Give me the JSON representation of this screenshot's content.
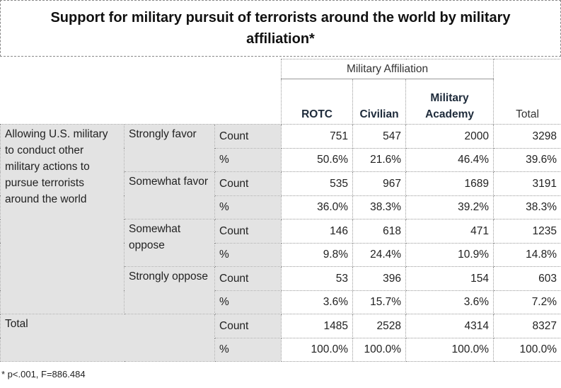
{
  "title": "Support for military pursuit of terrorists around the world by military affiliation*",
  "header": {
    "group": "Military Affiliation",
    "columns": [
      "ROTC",
      "Civilian",
      "Military Academy",
      "Total"
    ]
  },
  "sections": [
    {
      "label": "Allowing U.S. military to conduct other military actions to pursue terrorists around the world",
      "groups": [
        {
          "label": "Strongly favor",
          "rows": [
            {
              "stat": "Count",
              "values": [
                "751",
                "547",
                "2000",
                "3298"
              ]
            },
            {
              "stat": "%",
              "values": [
                "50.6%",
                "21.6%",
                "46.4%",
                "39.6%"
              ]
            }
          ]
        },
        {
          "label": "Somewhat favor",
          "rows": [
            {
              "stat": "Count",
              "values": [
                "535",
                "967",
                "1689",
                "3191"
              ]
            },
            {
              "stat": "%",
              "values": [
                "36.0%",
                "38.3%",
                "39.2%",
                "38.3%"
              ]
            }
          ]
        },
        {
          "label": "Somewhat oppose",
          "rows": [
            {
              "stat": "Count",
              "values": [
                "146",
                "618",
                "471",
                "1235"
              ]
            },
            {
              "stat": "%",
              "values": [
                "9.8%",
                "24.4%",
                "10.9%",
                "14.8%"
              ]
            }
          ]
        },
        {
          "label": "Strongly oppose",
          "rows": [
            {
              "stat": "Count",
              "values": [
                "53",
                "396",
                "154",
                "603"
              ]
            },
            {
              "stat": "%",
              "values": [
                "3.6%",
                "15.7%",
                "3.6%",
                "7.2%"
              ]
            }
          ]
        }
      ]
    },
    {
      "label": "Total",
      "rows": [
        {
          "stat": "Count",
          "values": [
            "1485",
            "2528",
            "4314",
            "8327"
          ]
        },
        {
          "stat": "%",
          "values": [
            "100.0%",
            "100.0%",
            "100.0%",
            "100.0%"
          ]
        }
      ]
    }
  ],
  "footnote": "* p<.001, F=886.484"
}
